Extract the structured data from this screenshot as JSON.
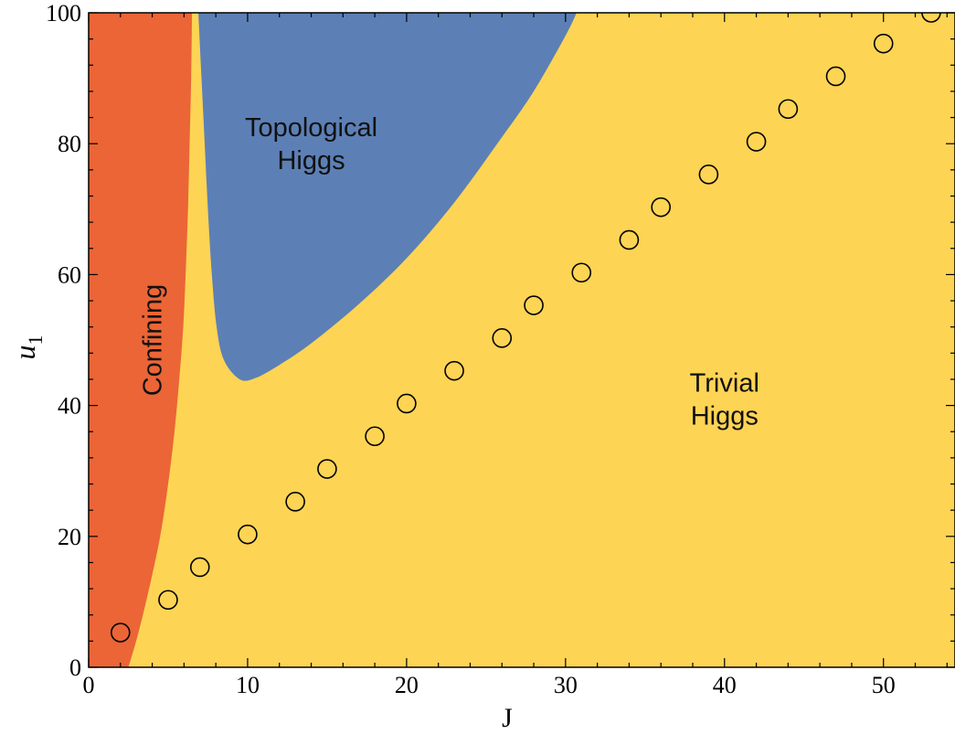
{
  "chart_data": {
    "type": "scatter",
    "title": "",
    "xlabel": "J",
    "ylabel": "u",
    "ylabel_subscript": "1",
    "xlim": [
      0,
      54.5
    ],
    "ylim": [
      0,
      100
    ],
    "x_ticks": [
      0,
      10,
      20,
      30,
      40,
      50
    ],
    "y_ticks": [
      0,
      20,
      40,
      60,
      80,
      100
    ],
    "x_tick_labels": [
      "0",
      "10",
      "20",
      "30",
      "40",
      "50"
    ],
    "y_tick_labels": [
      "0",
      "20",
      "40",
      "60",
      "80",
      "100"
    ],
    "minor_ticks_per_major": 5,
    "grid": false,
    "legend": "none",
    "regions": [
      {
        "name": "confining",
        "label_lines": [
          "Confining"
        ],
        "label_rotation": "vertical",
        "label_at": [
          4,
          50
        ],
        "color": "#EB6536",
        "boundary": [
          [
            2.5,
            0
          ],
          [
            3.1,
            5
          ],
          [
            3.8,
            12
          ],
          [
            4.5,
            20
          ],
          [
            5.0,
            28
          ],
          [
            5.4,
            36
          ],
          [
            5.7,
            44
          ],
          [
            5.95,
            52
          ],
          [
            6.1,
            60
          ],
          [
            6.25,
            70
          ],
          [
            6.35,
            80
          ],
          [
            6.45,
            90
          ],
          [
            6.5,
            100
          ]
        ]
      },
      {
        "name": "topological-higgs",
        "label_lines": [
          "Topological",
          "Higgs"
        ],
        "label_at": [
          14,
          80
        ],
        "color": "#5C80B5",
        "boundary": [
          [
            6.9,
            100
          ],
          [
            7.1,
            90
          ],
          [
            7.3,
            80
          ],
          [
            7.5,
            70
          ],
          [
            7.75,
            60
          ],
          [
            8.05,
            52
          ],
          [
            8.5,
            47
          ],
          [
            9.5,
            44
          ],
          [
            10.5,
            44.2
          ],
          [
            12,
            46.2
          ],
          [
            14,
            49.5
          ],
          [
            17,
            55.5
          ],
          [
            20,
            62.5
          ],
          [
            23,
            71
          ],
          [
            26,
            81
          ],
          [
            28,
            88
          ],
          [
            30,
            96.5
          ],
          [
            30.7,
            100
          ]
        ]
      },
      {
        "name": "trivial-higgs",
        "label_lines": [
          "Trivial",
          "Higgs"
        ],
        "label_at": [
          40,
          41
        ],
        "color": "#FDD454"
      }
    ],
    "series": [
      {
        "marker": "open-circle",
        "color": "#000000",
        "x": [
          2,
          5,
          7,
          10,
          13,
          15,
          18,
          20,
          23,
          26,
          28,
          31,
          34,
          36,
          39,
          42,
          44,
          47,
          50,
          53
        ],
        "y": [
          5.3,
          10.3,
          15.3,
          20.3,
          25.3,
          30.3,
          35.3,
          40.3,
          45.3,
          50.3,
          55.3,
          60.3,
          65.3,
          70.3,
          75.3,
          80.3,
          85.3,
          90.3,
          95.3,
          100
        ]
      }
    ]
  }
}
